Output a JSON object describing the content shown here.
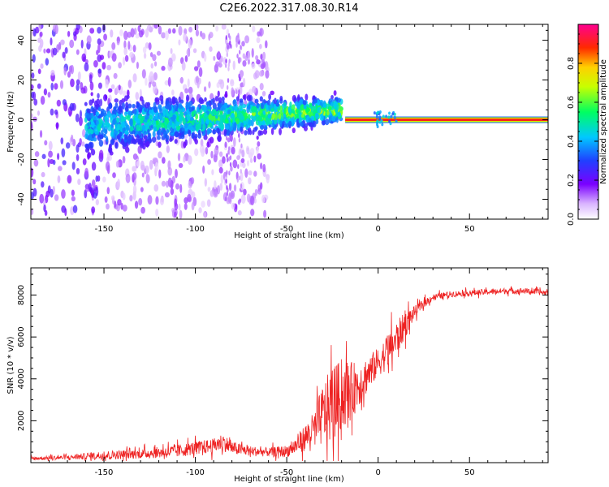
{
  "figure_title": "C2E6.2022.317.08.30.R14",
  "colors": {
    "snr_line": "#ee2222",
    "axis": "#000000",
    "background": "#ffffff"
  },
  "chart_data": [
    {
      "type": "heatmap",
      "title": "C2E6.2022.317.08.30.R14",
      "xlabel": "Height of straight line (km)",
      "ylabel": "Frequency (Hz)",
      "xlim": [
        -190,
        93
      ],
      "ylim": [
        -50,
        48
      ],
      "xticks": [
        -150,
        -100,
        -50,
        0,
        50
      ],
      "yticks": [
        -40,
        -20,
        0,
        20,
        40
      ],
      "colorbar": {
        "label": "Normalized spectral amplitude",
        "range": [
          0,
          1
        ],
        "ticks": [
          0.0,
          0.2,
          0.4,
          0.6,
          0.8
        ],
        "tick_labels": [
          "0.0",
          "0.2",
          "0.4",
          "0.6",
          "0.8"
        ],
        "colormap": "rainbow (white → violet → blue → cyan → green → yellow → red → magenta)"
      },
      "features": [
        {
          "name": "diffuse noise",
          "x_range": [
            -190,
            -60
          ],
          "freq_spread_hz": 48,
          "amplitude": 0.1
        },
        {
          "name": "widening central band",
          "x_range": [
            -160,
            -20
          ],
          "freq_center_hz": [
            -3,
            5
          ],
          "freq_halfwidth_hz": [
            9,
            4
          ],
          "peak_amplitude": 0.5
        },
        {
          "name": "narrow carrier line",
          "x_range": [
            -18,
            93
          ],
          "freq_center_hz": 0,
          "peak_amplitude": 0.9
        }
      ]
    },
    {
      "type": "line",
      "title": "",
      "xlabel": "Height of straight line (km)",
      "ylabel": "SNR (10 * v/v)",
      "xlim": [
        -190,
        93
      ],
      "ylim": [
        0,
        9300
      ],
      "xticks": [
        -150,
        -100,
        -50,
        0,
        50
      ],
      "yticks": [
        2000,
        4000,
        6000,
        8000
      ],
      "series": [
        {
          "name": "SNR",
          "x": [
            -190,
            -170,
            -150,
            -130,
            -110,
            -100,
            -90,
            -85,
            -80,
            -70,
            -60,
            -50,
            -45,
            -40,
            -35,
            -30,
            -25,
            -20,
            -15,
            -10,
            -5,
            0,
            5,
            10,
            15,
            20,
            25,
            30,
            40,
            50,
            60,
            70,
            80,
            93
          ],
          "mean": [
            200,
            250,
            350,
            420,
            550,
            700,
            800,
            1000,
            700,
            550,
            500,
            550,
            800,
            1200,
            1600,
            2300,
            2800,
            3200,
            3400,
            3800,
            4300,
            4800,
            5300,
            5900,
            6600,
            7200,
            7600,
            7900,
            8050,
            8100,
            8150,
            8200,
            8200,
            8100
          ],
          "jitter": [
            120,
            150,
            300,
            320,
            450,
            450,
            500,
            600,
            450,
            350,
            300,
            400,
            600,
            900,
            1200,
            2200,
            2600,
            2400,
            2000,
            1500,
            1200,
            1000,
            1200,
            1200,
            900,
            400,
            300,
            220,
            200,
            200,
            200,
            200,
            200,
            200
          ]
        }
      ]
    }
  ]
}
